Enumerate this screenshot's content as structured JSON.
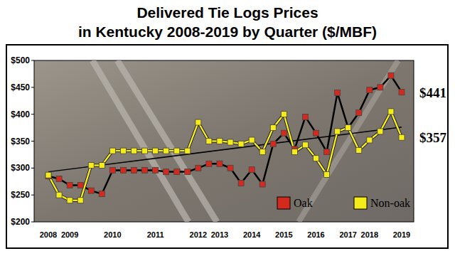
{
  "chart_data": {
    "type": "line",
    "title": "Delivered Tie Logs Prices",
    "subtitle": "in Kentucky 2008-2019 by Quarter ($/MBF)",
    "categories": [
      "2008",
      null,
      "2009",
      null,
      null,
      null,
      "2010",
      null,
      null,
      null,
      "2011",
      null,
      null,
      null,
      "2012",
      null,
      "2013",
      null,
      null,
      "2014",
      null,
      null,
      "2015",
      null,
      null,
      "2016",
      null,
      null,
      "2017",
      null,
      "2018",
      null,
      null,
      "2019"
    ],
    "series": [
      {
        "name": "Oak",
        "color": "#d42a1e",
        "marker": "square",
        "line_style": "solid",
        "values": [
          285,
          280,
          268,
          268,
          258,
          252,
          296,
          296,
          296,
          296,
          296,
          293,
          293,
          293,
          300,
          308,
          308,
          300,
          272,
          297,
          270,
          345,
          365,
          335,
          395,
          365,
          330,
          440,
          375,
          403,
          445,
          450,
          472,
          441
        ]
      },
      {
        "name": "Non-oak",
        "color": "#f5ec1a",
        "marker": "square",
        "line_style": "solid",
        "values": [
          287,
          250,
          240,
          240,
          305,
          305,
          332,
          332,
          332,
          332,
          332,
          332,
          332,
          332,
          385,
          350,
          350,
          348,
          345,
          352,
          330,
          375,
          400,
          330,
          343,
          318,
          288,
          368,
          375,
          333,
          352,
          368,
          405,
          357
        ]
      }
    ],
    "trendline": {
      "start": 293,
      "end": 376
    },
    "annotations": [
      {
        "text": "$441",
        "value": 441
      },
      {
        "text": "$357",
        "value": 357
      }
    ],
    "ylim": [
      200,
      500
    ],
    "yticks": [
      {
        "value": 200,
        "label": "$200"
      },
      {
        "value": 250,
        "label": "$250"
      },
      {
        "value": 300,
        "label": "$300"
      },
      {
        "value": 350,
        "label": "$350"
      },
      {
        "value": 400,
        "label": "$400"
      },
      {
        "value": 450,
        "label": "$450"
      },
      {
        "value": 500,
        "label": "$500"
      }
    ],
    "grid": false,
    "legend": "lower right"
  }
}
